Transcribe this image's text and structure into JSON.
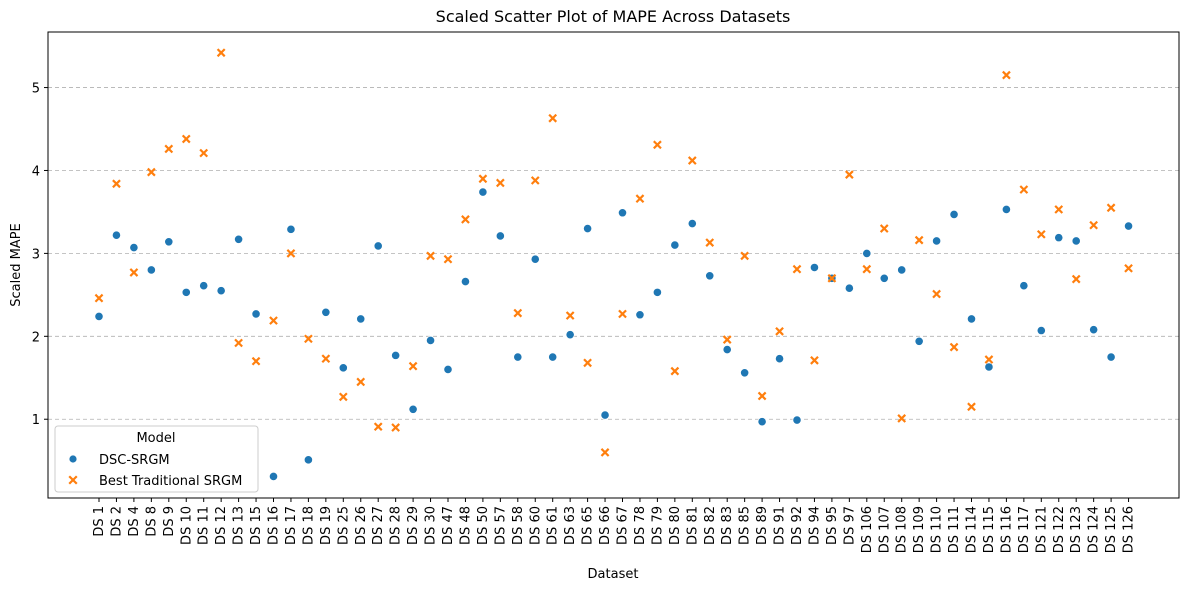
{
  "chart_data": {
    "type": "scatter",
    "title": "Scaled Scatter Plot of MAPE Across Datasets",
    "xlabel": "Dataset",
    "ylabel": "Scaled MAPE",
    "ylim": [
      0.05,
      5.67
    ],
    "yticks": [
      1,
      2,
      3,
      4,
      5
    ],
    "grid": "y-dashed",
    "legend": {
      "title": "Model",
      "placement": "lower-left"
    },
    "categories": [
      "DS 1",
      "DS 2",
      "DS 4",
      "DS 8",
      "DS 9",
      "DS 10",
      "DS 11",
      "DS 12",
      "DS 13",
      "DS 15",
      "DS 16",
      "DS 17",
      "DS 18",
      "DS 19",
      "DS 25",
      "DS 26",
      "DS 27",
      "DS 28",
      "DS 29",
      "DS 30",
      "DS 47",
      "DS 48",
      "DS 50",
      "DS 57",
      "DS 58",
      "DS 60",
      "DS 61",
      "DS 63",
      "DS 65",
      "DS 66",
      "DS 67",
      "DS 78",
      "DS 79",
      "DS 80",
      "DS 81",
      "DS 82",
      "DS 83",
      "DS 85",
      "DS 89",
      "DS 91",
      "DS 92",
      "DS 94",
      "DS 95",
      "DS 97",
      "DS 106",
      "DS 107",
      "DS 108",
      "DS 109",
      "DS 110",
      "DS 111",
      "DS 114",
      "DS 115",
      "DS 116",
      "DS 117",
      "DS 121",
      "DS 122",
      "DS 123",
      "DS 124",
      "DS 125",
      "DS 126"
    ],
    "series": [
      {
        "name": "DSC-SRGM",
        "color": "#1f77b4",
        "marker": "circle",
        "values": [
          2.24,
          3.22,
          3.07,
          2.8,
          3.14,
          2.53,
          2.61,
          2.55,
          3.17,
          2.27,
          0.31,
          3.29,
          0.51,
          2.29,
          1.62,
          2.21,
          3.09,
          1.77,
          1.12,
          1.95,
          1.6,
          2.66,
          3.74,
          3.21,
          1.75,
          2.93,
          1.75,
          2.02,
          3.3,
          1.05,
          3.49,
          2.26,
          2.53,
          3.1,
          3.36,
          2.73,
          1.84,
          1.56,
          0.97,
          1.73,
          0.99,
          2.83,
          2.7,
          2.58,
          3.0,
          2.7,
          2.8,
          1.94,
          3.15,
          3.47,
          2.21,
          1.63,
          3.53,
          2.61,
          2.07,
          3.19,
          3.15,
          2.08,
          1.75,
          3.33
        ]
      },
      {
        "name": "Best Traditional SRGM",
        "color": "#ff7f0e",
        "marker": "x",
        "values": [
          2.46,
          3.84,
          2.77,
          3.98,
          4.26,
          4.38,
          4.21,
          5.42,
          1.92,
          1.7,
          2.19,
          3.0,
          1.97,
          1.73,
          1.27,
          1.45,
          0.91,
          0.9,
          1.64,
          2.97,
          2.93,
          3.41,
          3.9,
          3.85,
          2.28,
          3.88,
          4.63,
          2.25,
          1.68,
          0.6,
          2.27,
          3.66,
          4.31,
          1.58,
          4.12,
          3.13,
          1.96,
          2.97,
          1.28,
          2.06,
          2.81,
          1.71,
          2.7,
          3.95,
          2.81,
          3.3,
          1.01,
          3.16,
          2.51,
          1.87,
          1.15,
          1.72,
          5.15,
          3.77,
          3.23,
          3.53,
          2.69,
          3.34,
          3.55,
          2.82
        ]
      }
    ]
  }
}
